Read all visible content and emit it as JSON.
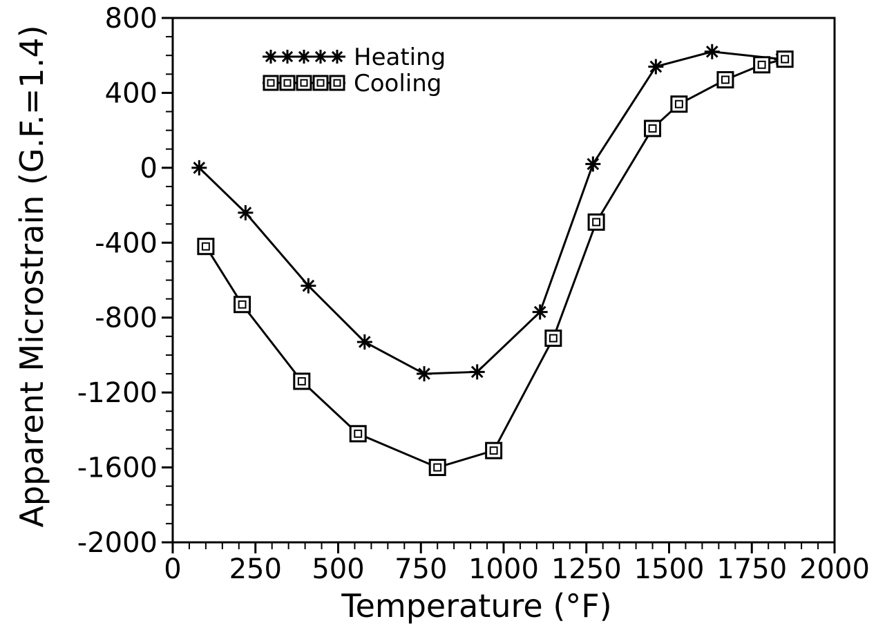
{
  "chart_data": {
    "type": "line",
    "xlabel": "Temperature (°F)",
    "ylabel": "Apparent Microstrain (G.F.=1.4)",
    "xlim": [
      0,
      2000
    ],
    "ylim": [
      -2000,
      800
    ],
    "x_ticks": [
      0,
      250,
      500,
      750,
      1000,
      1250,
      1500,
      1750,
      2000
    ],
    "x_tick_labels": [
      "0",
      "250",
      "500",
      "750",
      "1000",
      "1250",
      "1500",
      "1750",
      "2000"
    ],
    "y_ticks": [
      -2000,
      -1600,
      -1200,
      -800,
      -400,
      0,
      400,
      800
    ],
    "y_tick_labels": [
      "-2000",
      "-1600",
      "-1200",
      "-800",
      "-400",
      "0",
      "400",
      "800"
    ],
    "grid": false,
    "legend_position": "top-left",
    "series": [
      {
        "name": "Heating",
        "marker": "asterisk",
        "x": [
          80,
          220,
          410,
          580,
          760,
          920,
          1110,
          1270,
          1460,
          1630,
          1840
        ],
        "y": [
          0,
          -240,
          -630,
          -930,
          -1100,
          -1090,
          -770,
          20,
          540,
          620,
          580
        ]
      },
      {
        "name": "Cooling",
        "marker": "square",
        "x": [
          100,
          210,
          390,
          560,
          800,
          970,
          1150,
          1280,
          1450,
          1530,
          1670,
          1780,
          1850
        ],
        "y": [
          -420,
          -730,
          -1140,
          -1420,
          -1600,
          -1510,
          -910,
          -290,
          210,
          340,
          470,
          550,
          580
        ]
      }
    ]
  }
}
